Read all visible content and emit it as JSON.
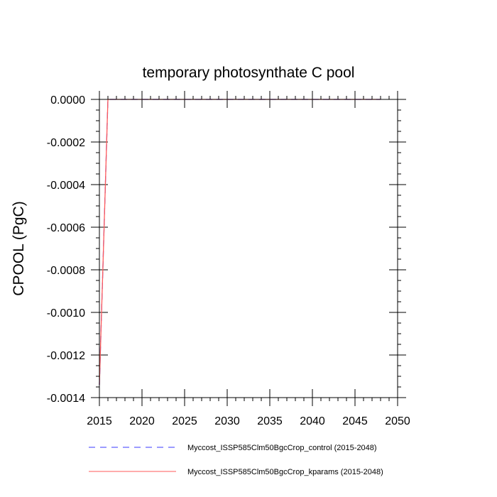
{
  "chart_data": {
    "type": "line",
    "title": "temporary photosynthate C pool",
    "xlabel": "",
    "ylabel": "CPOOL  (PgC)",
    "xlim": [
      2015,
      2050
    ],
    "ylim": [
      -0.0014,
      0.0
    ],
    "xticks": [
      2015,
      2020,
      2025,
      2030,
      2035,
      2040,
      2045,
      2050
    ],
    "xtick_labels": [
      "2015",
      "2020",
      "2025",
      "2030",
      "2035",
      "2040",
      "2045",
      "2050"
    ],
    "yticks": [
      0.0,
      -0.0002,
      -0.0004,
      -0.0006,
      -0.0008,
      -0.001,
      -0.0012,
      -0.0014
    ],
    "ytick_labels": [
      "0.0000",
      "-0.0002",
      "-0.0004",
      "-0.0006",
      "-0.0008",
      "-0.0010",
      "-0.0012",
      "-0.0014"
    ],
    "grid": false,
    "legend_position": "bottom",
    "series": [
      {
        "name": "Myccost_ISSP585Clm50BgcCrop_control (2015-2048)",
        "color": "#3a3aff",
        "dash": "dashed",
        "x": [
          2015,
          2016,
          2048
        ],
        "y": [
          -0.00134,
          0.0,
          0.0
        ]
      },
      {
        "name": "Myccost_ISSP585Clm50BgcCrop_kparams (2015-2048)",
        "color": "#ff5a5a",
        "dash": "solid",
        "x": [
          2015,
          2016,
          2048
        ],
        "y": [
          -0.00134,
          0.0,
          0.0
        ]
      }
    ]
  }
}
